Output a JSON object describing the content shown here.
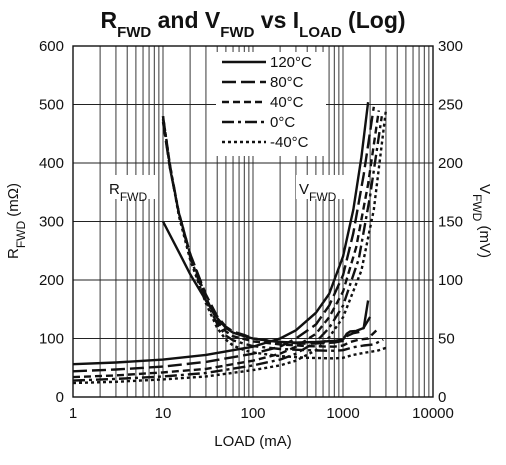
{
  "chart_data": {
    "type": "line",
    "title": {
      "r_main": "R",
      "r_sub": "FWD",
      "and": " and ",
      "v_main": "V",
      "v_sub": "FWD",
      "vs": " vs ",
      "i_main": "I",
      "i_sub": "LOAD",
      "suffix": " (Log)"
    },
    "xlabel": "LOAD (mA)",
    "ylabel_left": {
      "main": "R",
      "sub": "FWD",
      "unit": " (mΩ)"
    },
    "ylabel_right": {
      "main": "V",
      "sub": "FWD",
      "unit": " (mV)"
    },
    "x_scale": "log",
    "xlim": [
      1,
      10000
    ],
    "ylim_left": [
      0,
      600
    ],
    "ylim_right": [
      0,
      300
    ],
    "x_ticks": [
      1,
      10,
      100,
      1000,
      10000
    ],
    "x_tick_labels": [
      "1",
      "10",
      "100",
      "1000",
      "10000"
    ],
    "y_left_ticks": [
      0,
      100,
      200,
      300,
      400,
      500,
      600
    ],
    "y_left_tick_labels": [
      "0",
      "100",
      "200",
      "300",
      "400",
      "500",
      "600"
    ],
    "y_right_ticks": [
      0,
      50,
      100,
      150,
      200,
      250,
      300
    ],
    "y_right_tick_labels": [
      "0",
      "50",
      "100",
      "150",
      "200",
      "250",
      "300"
    ],
    "grid": true,
    "legend_position": "top-center",
    "annotations": {
      "r_label": {
        "main": "R",
        "sub": "FWD"
      },
      "v_label": {
        "main": "V",
        "sub": "FWD"
      }
    },
    "series": [
      {
        "name": "120°C",
        "dash": "solid",
        "rfwd": {
          "x": [
            10,
            15,
            20,
            30,
            40,
            50,
            60,
            80,
            100,
            150,
            200,
            300,
            500,
            800,
            1000,
            1100,
            1200,
            1400,
            1700,
            1900
          ],
          "y": [
            300,
            248,
            210,
            165,
            135,
            118,
            110,
            104,
            100,
            96,
            94,
            93,
            94,
            96,
            98,
            108,
            112,
            113,
            118,
            165
          ]
        },
        "vfwd": {
          "x": [
            1,
            3,
            10,
            30,
            100,
            200,
            300,
            500,
            700,
            1000,
            1300,
            1600,
            1900
          ],
          "y": [
            28,
            29.5,
            32,
            36,
            43,
            50,
            57,
            72,
            88,
            120,
            160,
            205,
            252
          ]
        }
      },
      {
        "name": "80°C",
        "dash": "long",
        "rfwd": {
          "x": [
            10,
            12,
            15,
            20,
            30,
            40,
            50,
            60,
            80,
            100,
            200,
            400,
            800,
            1000,
            1100,
            1300,
            1600,
            2100
          ],
          "y": [
            470,
            390,
            315,
            245,
            175,
            138,
            120,
            112,
            106,
            100,
            94,
            91,
            93,
            96,
            104,
            109,
            112,
            142
          ]
        },
        "vfwd": {
          "x": [
            1,
            3,
            10,
            30,
            100,
            200,
            300,
            500,
            700,
            1000,
            1300,
            1700,
            2200
          ],
          "y": [
            22,
            23.5,
            26,
            30,
            37,
            43,
            50,
            62,
            78,
            104,
            140,
            190,
            248
          ]
        }
      },
      {
        "name": "40°C",
        "dash": "medium",
        "rfwd": {
          "x": [
            10,
            12,
            15,
            20,
            30,
            40,
            50,
            60,
            80,
            100,
            200,
            400,
            800,
            1000,
            1200,
            1500,
            1900,
            2500
          ],
          "y": [
            475,
            390,
            315,
            245,
            170,
            130,
            112,
            104,
            99,
            95,
            90,
            87,
            86,
            88,
            94,
            98,
            100,
            118
          ]
        },
        "vfwd": {
          "x": [
            1,
            3,
            10,
            30,
            100,
            200,
            300,
            500,
            700,
            1000,
            1400,
            1900,
            2500
          ],
          "y": [
            17,
            18.5,
            21,
            24,
            31,
            37,
            43,
            54,
            68,
            90,
            128,
            182,
            245
          ]
        }
      },
      {
        "name": "0°C",
        "dash": "dashdot",
        "rfwd": {
          "x": [
            10,
            12,
            15,
            20,
            30,
            40,
            50,
            60,
            80,
            100,
            200,
            400,
            800,
            1000,
            1300,
            1700,
            2200,
            2800
          ],
          "y": [
            480,
            395,
            315,
            240,
            165,
            125,
            105,
            97,
            91,
            87,
            82,
            80,
            79,
            80,
            85,
            88,
            90,
            98
          ]
        },
        "vfwd": {
          "x": [
            1,
            3,
            10,
            30,
            100,
            200,
            300,
            500,
            700,
            1000,
            1500,
            2000,
            2700
          ],
          "y": [
            14,
            15.5,
            17.5,
            20.5,
            27,
            32,
            37,
            47,
            59,
            78,
            118,
            172,
            240
          ]
        }
      },
      {
        "name": "-40°C",
        "dash": "short",
        "rfwd": {
          "x": [
            10,
            12,
            15,
            20,
            30,
            40,
            50,
            60,
            80,
            100,
            200,
            400,
            800,
            1000,
            1300,
            1800,
            2400,
            3000
          ],
          "y": [
            480,
            395,
            310,
            235,
            160,
            118,
            98,
            88,
            80,
            76,
            70,
            67,
            66,
            67,
            72,
            76,
            79,
            84
          ]
        },
        "vfwd": {
          "x": [
            1,
            3,
            10,
            30,
            100,
            200,
            300,
            500,
            700,
            1000,
            1600,
            2200,
            3000
          ],
          "y": [
            12,
            13,
            15,
            17.5,
            23,
            27,
            31,
            40,
            51,
            68,
            108,
            160,
            245
          ]
        }
      }
    ]
  }
}
